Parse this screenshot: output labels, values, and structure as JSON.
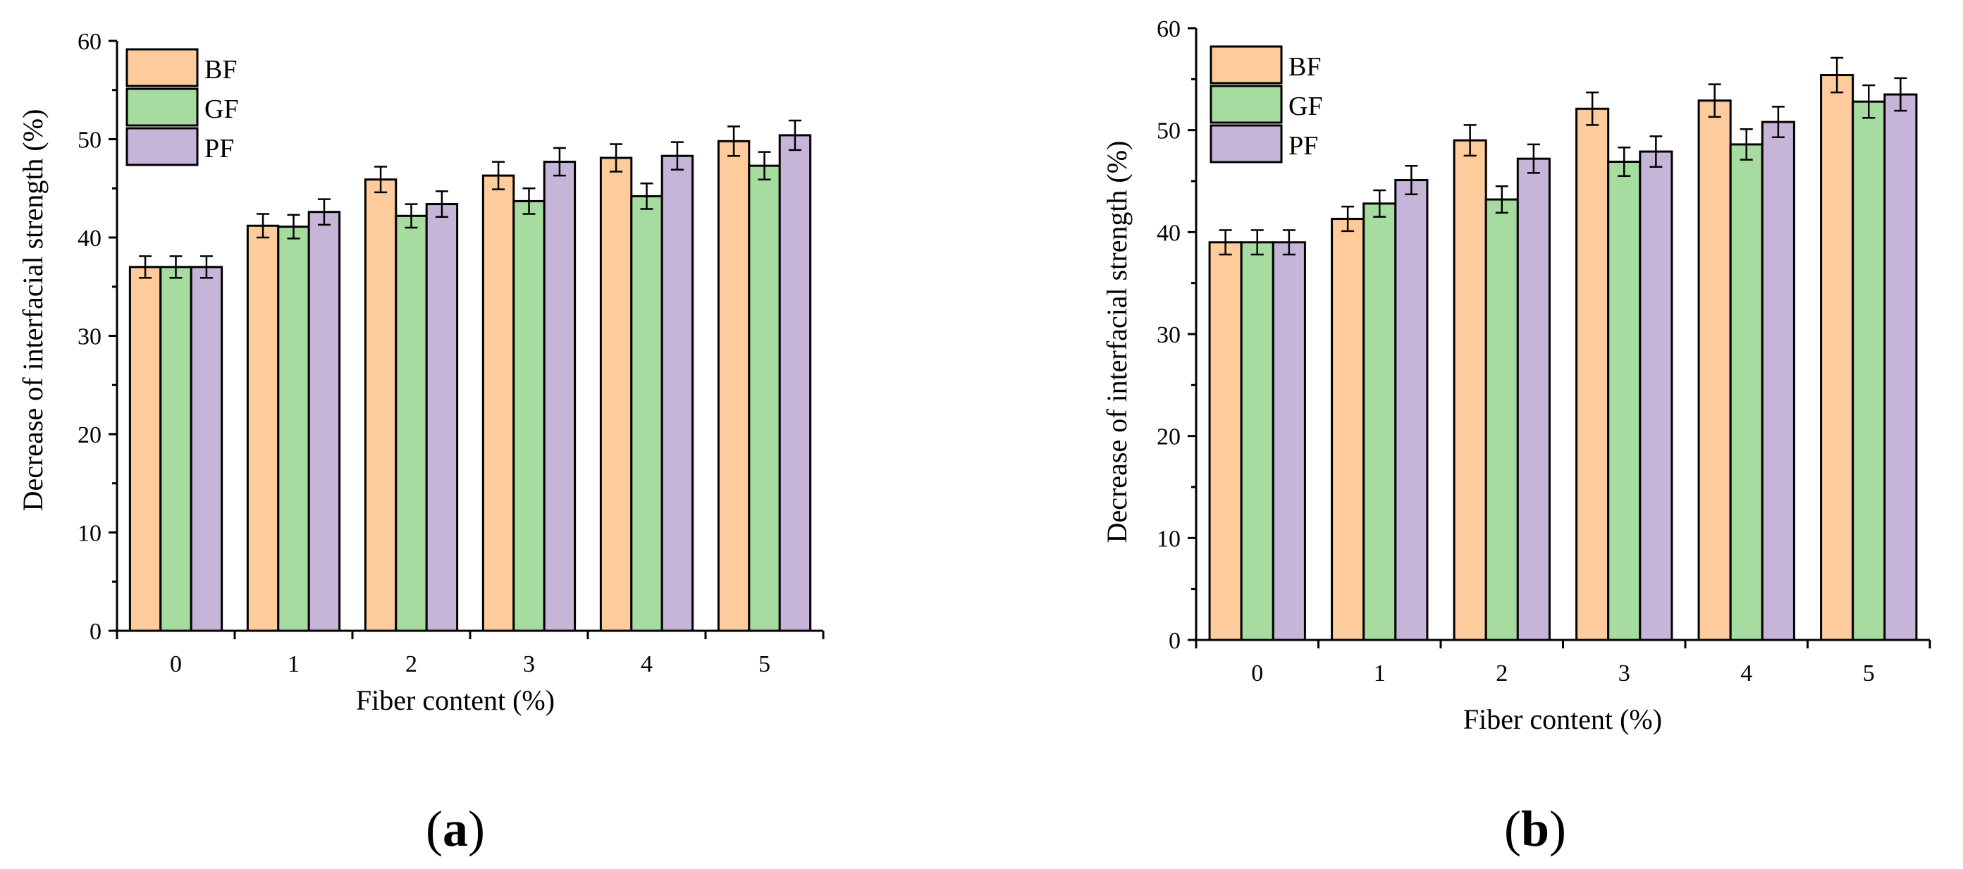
{
  "chart_data": [
    {
      "type": "bar",
      "panel_id": "a",
      "panel_label": {
        "open": "(",
        "letter": "a",
        "close": ")"
      },
      "categories": [
        "0",
        "1",
        "2",
        "3",
        "4",
        "5"
      ],
      "series": [
        {
          "name": "BF",
          "color": "#FDCB9C",
          "values": [
            37,
            41.2,
            45.9,
            46.3,
            48.1,
            49.8
          ],
          "errors": [
            1.1,
            1.2,
            1.3,
            1.4,
            1.4,
            1.5
          ]
        },
        {
          "name": "GF",
          "color": "#A6DCA0",
          "values": [
            37,
            41.1,
            42.2,
            43.7,
            44.2,
            47.3
          ],
          "errors": [
            1.1,
            1.2,
            1.2,
            1.3,
            1.3,
            1.4
          ]
        },
        {
          "name": "PF",
          "color": "#C6B5D9",
          "values": [
            37,
            42.6,
            43.4,
            47.7,
            48.3,
            50.4
          ],
          "errors": [
            1.1,
            1.3,
            1.3,
            1.4,
            1.4,
            1.5
          ]
        }
      ],
      "title": "",
      "xlabel": "Fiber content (%)",
      "ylabel": "Decrease of interfacial strength (%)",
      "ylim": [
        0,
        60
      ],
      "yticks": [
        "0",
        "10",
        "20",
        "30",
        "40",
        "50",
        "60"
      ],
      "legend_position": "top-left",
      "grid": false
    },
    {
      "type": "bar",
      "panel_id": "b",
      "panel_label": {
        "open": "(",
        "letter": "b",
        "close": ")"
      },
      "categories": [
        "0",
        "1",
        "2",
        "3",
        "4",
        "5"
      ],
      "series": [
        {
          "name": "BF",
          "color": "#FDCB9C",
          "values": [
            39,
            41.3,
            49,
            52.1,
            52.9,
            55.4
          ],
          "errors": [
            1.2,
            1.2,
            1.5,
            1.6,
            1.6,
            1.7
          ]
        },
        {
          "name": "GF",
          "color": "#A6DCA0",
          "values": [
            39,
            42.8,
            43.2,
            46.9,
            48.6,
            52.8
          ],
          "errors": [
            1.2,
            1.3,
            1.3,
            1.4,
            1.5,
            1.6
          ]
        },
        {
          "name": "PF",
          "color": "#C6B5D9",
          "values": [
            39,
            45.1,
            47.2,
            47.9,
            50.8,
            53.5
          ],
          "errors": [
            1.2,
            1.4,
            1.4,
            1.5,
            1.5,
            1.6
          ]
        }
      ],
      "title": "",
      "xlabel": "Fiber content (%)",
      "ylabel": "Decrease of interfacial strength (%)",
      "ylim": [
        0,
        60
      ],
      "yticks": [
        "0",
        "10",
        "20",
        "30",
        "40",
        "50",
        "60"
      ],
      "legend_position": "top-left",
      "grid": false
    }
  ]
}
